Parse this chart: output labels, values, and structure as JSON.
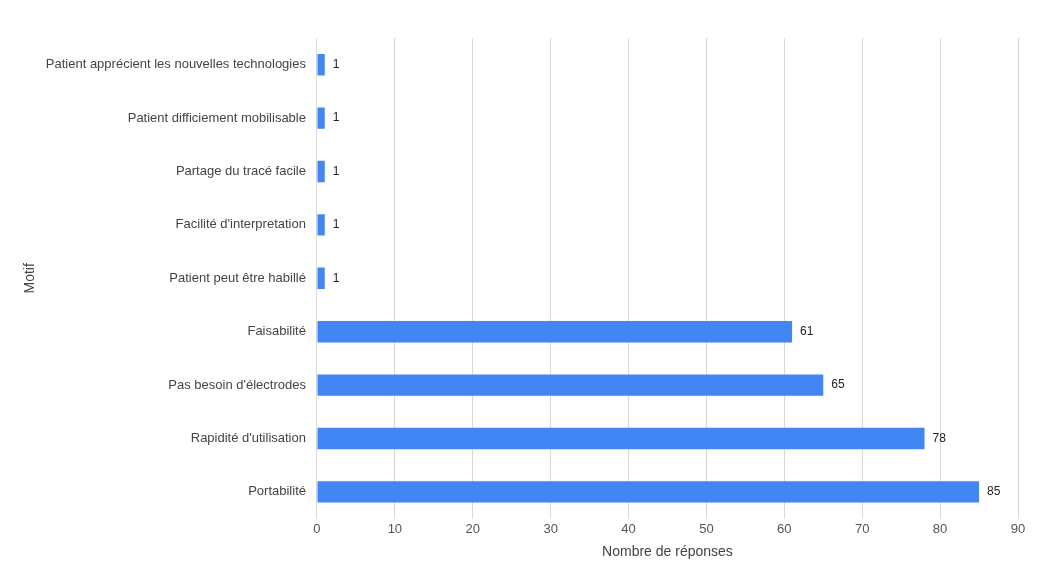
{
  "chart_data": {
    "type": "bar",
    "orientation": "horizontal",
    "xlabel": "Nombre de réponses",
    "ylabel": "Motif",
    "categories": [
      "Patient apprécient les nouvelles technologies",
      "Patient difficiement mobilisable",
      "Partage du tracé facile",
      "Facilité d'interpretation",
      "Patient peut être habillé",
      "Faisabilité",
      "Pas besoin d'électrodes",
      "Rapidité d'utilisation",
      "Portabilité"
    ],
    "values": [
      1,
      1,
      1,
      1,
      1,
      61,
      65,
      78,
      85
    ],
    "color": "#4285f4",
    "xlim": [
      0,
      90
    ],
    "xticks": [
      0,
      10,
      20,
      30,
      40,
      50,
      60,
      70,
      80,
      90
    ],
    "grid": "x",
    "data_labels": true,
    "legend": false
  }
}
